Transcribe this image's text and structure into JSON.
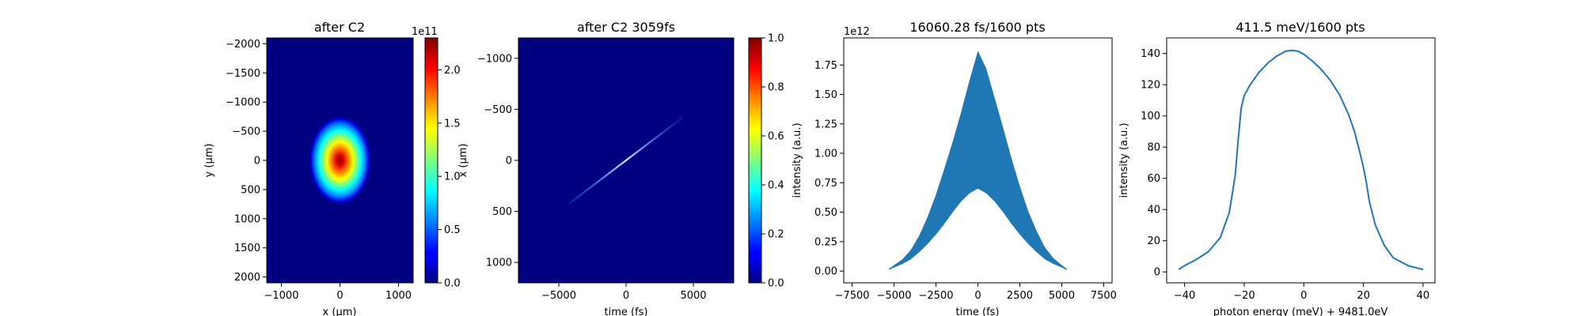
{
  "colors": {
    "line_blue": "#1f77b4",
    "jet_dark_blue": "#000080"
  },
  "chart_data": [
    {
      "type": "heatmap",
      "title": "after C2",
      "xlabel": "x (μm)",
      "ylabel": "y (μm)",
      "xlim": [
        -1250,
        1250
      ],
      "ylim": [
        2100,
        -2100
      ],
      "xticks": [
        "−1000",
        "0",
        "1000"
      ],
      "yticks": [
        "−2000",
        "−1500",
        "−1000",
        "−500",
        "0",
        "500",
        "1000",
        "1500",
        "2000"
      ],
      "colormap": "jet",
      "spot": {
        "center_x": 0,
        "center_y": 0,
        "sigma_x": 230,
        "sigma_y": 330
      },
      "colorbar": {
        "range": [
          0,
          2.3
        ],
        "ticks": [
          "0.0",
          "0.5",
          "1.0",
          "1.5",
          "2.0"
        ],
        "offset_label": "1e11"
      }
    },
    {
      "type": "heatmap",
      "title": "after C2 3059fs",
      "xlabel": "time (fs)",
      "ylabel": "x (μm)",
      "xlim": [
        -8000,
        8000
      ],
      "ylim": [
        1200,
        -1200
      ],
      "xticks": [
        "−5000",
        "0",
        "5000"
      ],
      "yticks": [
        "−1000",
        "−500",
        "0",
        "500",
        "1000"
      ],
      "colormap": "jet",
      "streak": {
        "start": [
          -4200,
          420
        ],
        "end": [
          4200,
          -420
        ]
      },
      "colorbar": {
        "range": [
          0,
          1
        ],
        "ticks": [
          "0.0",
          "0.2",
          "0.4",
          "0.6",
          "0.8",
          "1.0"
        ]
      }
    },
    {
      "type": "area",
      "title": "16060.28 fs/1600 pts",
      "xlabel": "time (fs)",
      "ylabel": "intensity (a.u.)",
      "xlim": [
        -8000,
        8000
      ],
      "ylim": [
        -0.1,
        1.98
      ],
      "xticks": [
        "−7500",
        "−5000",
        "−2500",
        "0",
        "2500",
        "5000",
        "7500"
      ],
      "yticks": [
        "0.00",
        "0.25",
        "0.50",
        "0.75",
        "1.00",
        "1.25",
        "1.50",
        "1.75"
      ],
      "offset_label": "1e12",
      "series": [
        {
          "x": [
            -5300,
            -5000,
            -4500,
            -4000,
            -3500,
            -3000,
            -2500,
            -2000,
            -1500,
            -1000,
            -500,
            0,
            500,
            1000,
            1500,
            2000,
            2500,
            3000,
            3500,
            4000,
            4500,
            5000,
            5300
          ],
          "upper": [
            0.02,
            0.05,
            0.1,
            0.18,
            0.3,
            0.46,
            0.65,
            0.87,
            1.1,
            1.35,
            1.62,
            1.87,
            1.72,
            1.47,
            1.22,
            0.96,
            0.72,
            0.51,
            0.34,
            0.2,
            0.11,
            0.05,
            0.02
          ],
          "lower": [
            0.01,
            0.03,
            0.06,
            0.1,
            0.16,
            0.23,
            0.31,
            0.4,
            0.5,
            0.59,
            0.66,
            0.7,
            0.66,
            0.59,
            0.5,
            0.4,
            0.31,
            0.23,
            0.16,
            0.1,
            0.06,
            0.03,
            0.01
          ]
        }
      ]
    },
    {
      "type": "line",
      "title": "411.5 meV/1600 pts",
      "xlabel": "photon energy (meV) + 9481.0eV",
      "ylabel": "intensity (a.u.)",
      "xlim": [
        -46,
        44
      ],
      "ylim": [
        -7,
        150
      ],
      "xticks": [
        "−40",
        "−20",
        "0",
        "20",
        "40"
      ],
      "yticks": [
        "0",
        "20",
        "40",
        "60",
        "80",
        "100",
        "120",
        "140"
      ],
      "series": [
        {
          "x": [
            -42,
            -40,
            -36,
            -32,
            -28,
            -25,
            -23,
            -22,
            -21,
            -20,
            -18,
            -15,
            -12,
            -9,
            -6,
            -4,
            -2,
            0,
            3,
            6,
            9,
            12,
            15,
            17,
            19,
            20,
            21,
            22,
            24,
            27,
            30,
            35,
            40
          ],
          "y": [
            1.5,
            4,
            8,
            13,
            22,
            38,
            62,
            85,
            105,
            113,
            120,
            128,
            134,
            138.5,
            141.5,
            142,
            141.5,
            139.5,
            135,
            129.5,
            122.5,
            113.5,
            101,
            90,
            75,
            67,
            57,
            45,
            30,
            17,
            9,
            4,
            1.5
          ]
        }
      ]
    }
  ]
}
